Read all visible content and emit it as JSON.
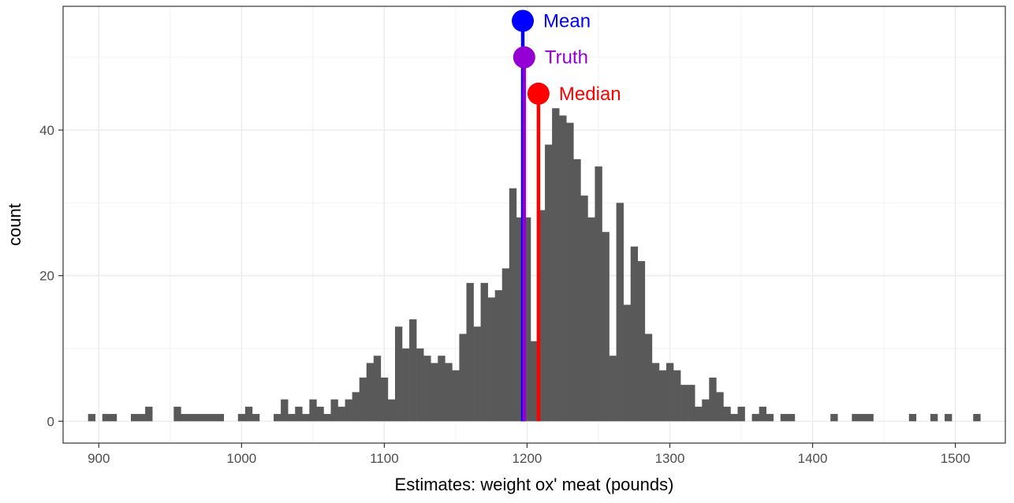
{
  "chart_data": {
    "type": "bar",
    "xlabel": "Estimates: weight ox' meat (pounds)",
    "ylabel": "count",
    "xlim": [
      875,
      1535
    ],
    "ylim": [
      -3,
      57
    ],
    "grid": true,
    "bin_width": 5,
    "x_ticks": [
      900,
      1000,
      1100,
      1200,
      1300,
      1400,
      1500
    ],
    "y_ticks": [
      0,
      20,
      40
    ],
    "bar_color": "#595959",
    "x": [
      895,
      905,
      910,
      925,
      930,
      935,
      955,
      960,
      965,
      970,
      975,
      980,
      985,
      1000,
      1005,
      1010,
      1025,
      1030,
      1035,
      1040,
      1045,
      1050,
      1055,
      1060,
      1065,
      1070,
      1075,
      1080,
      1085,
      1090,
      1095,
      1100,
      1105,
      1110,
      1115,
      1120,
      1125,
      1130,
      1135,
      1140,
      1145,
      1150,
      1155,
      1160,
      1165,
      1170,
      1175,
      1180,
      1185,
      1190,
      1195,
      1200,
      1205,
      1210,
      1215,
      1220,
      1225,
      1230,
      1235,
      1240,
      1245,
      1250,
      1255,
      1260,
      1265,
      1270,
      1275,
      1280,
      1285,
      1290,
      1295,
      1300,
      1305,
      1310,
      1315,
      1320,
      1325,
      1330,
      1335,
      1340,
      1345,
      1350,
      1360,
      1365,
      1370,
      1380,
      1385,
      1415,
      1430,
      1435,
      1440,
      1470,
      1485,
      1495,
      1515
    ],
    "values": [
      1,
      1,
      1,
      1,
      1,
      2,
      2,
      1,
      1,
      1,
      1,
      1,
      1,
      1,
      2,
      1,
      1,
      3,
      1,
      2,
      1,
      3,
      2,
      1,
      3,
      2,
      3,
      4,
      6,
      8,
      9,
      6,
      3,
      13,
      10,
      14,
      10,
      9,
      8,
      9,
      8,
      7,
      12,
      19,
      13,
      19,
      17,
      18,
      21,
      32,
      28,
      28,
      11,
      29,
      38,
      43,
      42,
      41,
      36,
      31,
      28,
      35,
      26,
      9,
      30,
      16,
      24,
      22,
      12,
      8,
      7,
      8,
      7,
      5,
      5,
      2,
      3,
      6,
      4,
      2,
      1,
      2,
      1,
      2,
      1,
      1,
      1,
      1,
      1,
      1,
      1,
      1,
      1,
      1,
      1
    ],
    "markers": [
      {
        "label": "Mean",
        "x": 1197,
        "y": 55,
        "color": "#0000ff"
      },
      {
        "label": "Truth",
        "x": 1198,
        "y": 50,
        "color": "#9400d3"
      },
      {
        "label": "Median",
        "x": 1208,
        "y": 45,
        "color": "#ff0000"
      }
    ]
  }
}
